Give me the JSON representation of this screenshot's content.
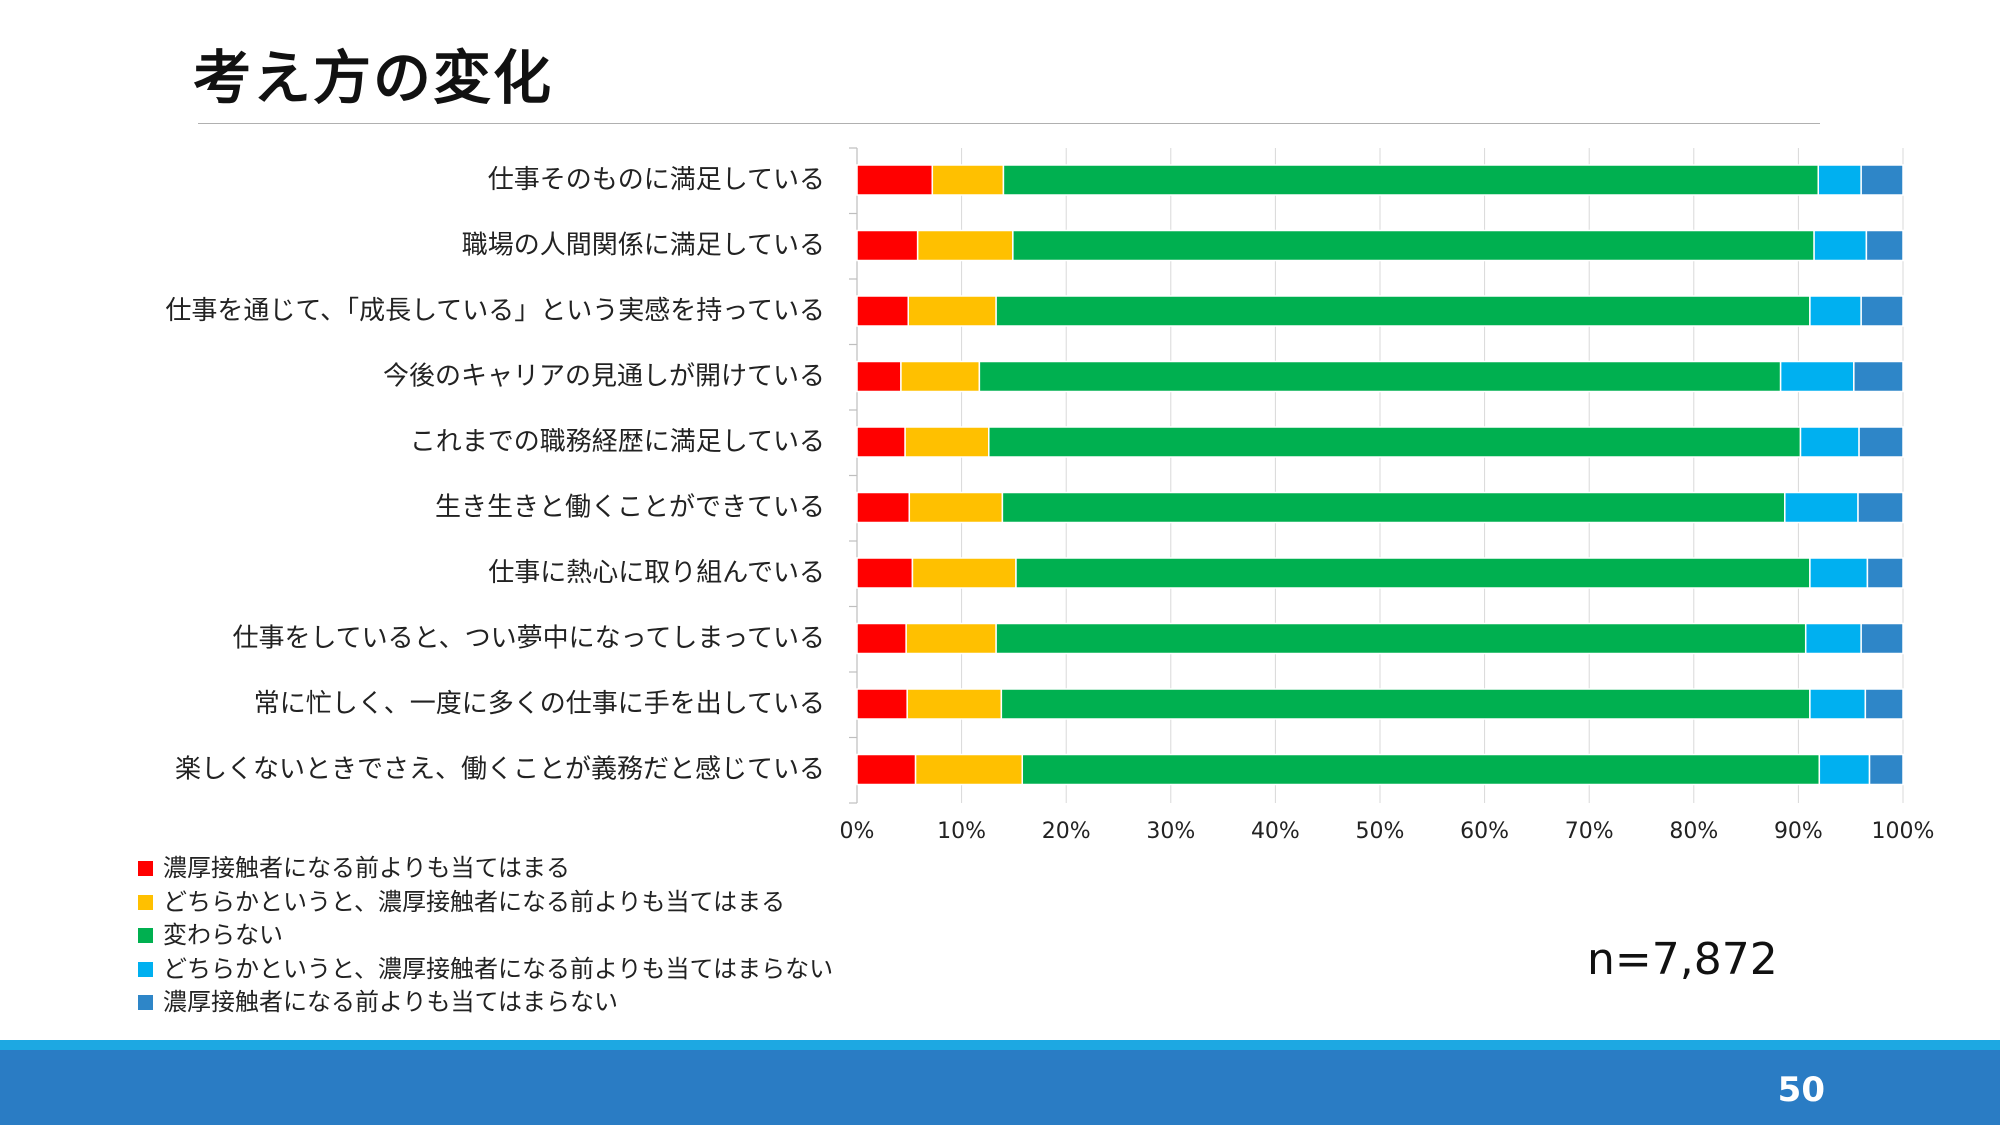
{
  "slide": {
    "title": "考え方の変化",
    "sample_size": "n=7,872",
    "page_number": "50"
  },
  "chart_data": {
    "type": "bar",
    "orientation": "horizontal",
    "stacked": "percent",
    "categories": [
      "仕事そのものに満足している",
      "職場の人間関係に満足している",
      "仕事を通じて、「成長している」という実感を持っている",
      "今後のキャリアの見通しが開けている",
      "これまでの職務経歴に満足している",
      "生き生きと働くことができている",
      "仕事に熱心に取り組んでいる",
      "仕事をしていると、つい夢中になってしまっている",
      "常に忙しく、一度に多くの仕事に手を出している",
      "楽しくないときでさえ、働くことが義務だと感じている"
    ],
    "series": [
      {
        "name": "濃厚接触者になる前よりも当てはまる",
        "color": "#ff0000",
        "values": [
          7.2,
          5.8,
          4.9,
          4.2,
          4.6,
          5.0,
          5.3,
          4.7,
          4.8,
          5.6
        ]
      },
      {
        "name": "どちらかというと、濃厚接触者になる前よりも当てはまる",
        "color": "#ffc000",
        "values": [
          6.8,
          9.1,
          8.4,
          7.5,
          8.0,
          8.9,
          9.9,
          8.6,
          9.0,
          10.2
        ]
      },
      {
        "name": "変わらない",
        "color": "#00b050",
        "values": [
          77.9,
          76.6,
          77.8,
          76.6,
          77.6,
          74.8,
          75.9,
          77.4,
          77.3,
          76.2
        ]
      },
      {
        "name": "どちらかというと、濃厚接触者になる前よりも当てはまらない",
        "color": "#00b0f0",
        "values": [
          4.1,
          5.0,
          4.9,
          7.0,
          5.6,
          7.0,
          5.5,
          5.3,
          5.3,
          4.8
        ]
      },
      {
        "name": "濃厚接触者になる前よりも当てはまらない",
        "color": "#2e86c8",
        "values": [
          4.0,
          3.5,
          4.0,
          4.7,
          4.2,
          4.3,
          3.4,
          4.0,
          3.6,
          3.2
        ]
      }
    ],
    "xlim": [
      0,
      100
    ],
    "xticks": [
      "0%",
      "10%",
      "20%",
      "30%",
      "40%",
      "50%",
      "60%",
      "70%",
      "80%",
      "90%",
      "100%"
    ],
    "grid": true,
    "legend_position": "bottom-left"
  }
}
